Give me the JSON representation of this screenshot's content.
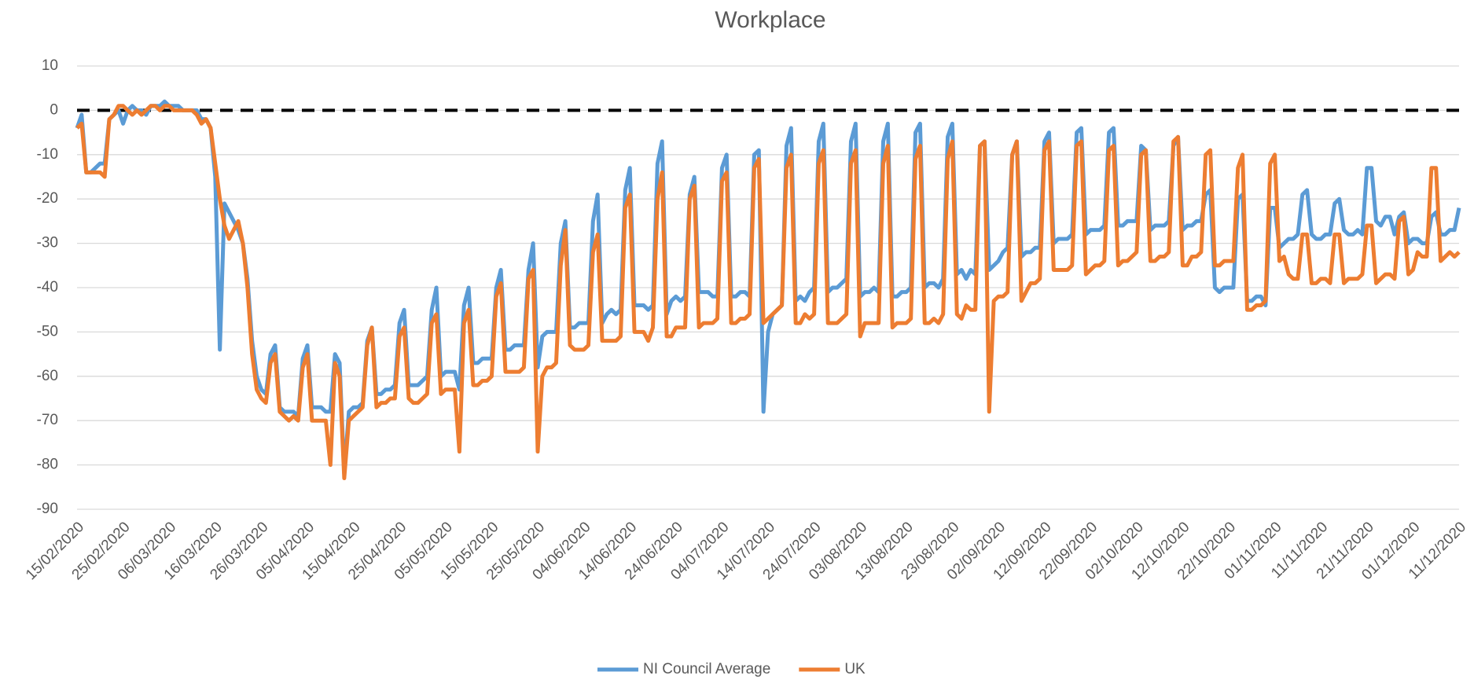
{
  "chart_data": {
    "type": "line",
    "title": "Workplace",
    "categories": [
      "15/02/2020",
      null,
      null,
      null,
      null,
      null,
      null,
      null,
      null,
      null,
      "25/02/2020",
      null,
      null,
      null,
      null,
      null,
      null,
      null,
      null,
      null,
      "06/03/2020",
      null,
      null,
      null,
      null,
      null,
      null,
      null,
      null,
      null,
      "16/03/2020",
      null,
      null,
      null,
      null,
      null,
      null,
      null,
      null,
      null,
      "26/03/2020",
      null,
      null,
      null,
      null,
      null,
      null,
      null,
      null,
      null,
      "05/04/2020",
      null,
      null,
      null,
      null,
      null,
      null,
      null,
      null,
      null,
      "15/04/2020",
      null,
      null,
      null,
      null,
      null,
      null,
      null,
      null,
      null,
      "25/04/2020",
      null,
      null,
      null,
      null,
      null,
      null,
      null,
      null,
      null,
      "05/05/2020",
      null,
      null,
      null,
      null,
      null,
      null,
      null,
      null,
      null,
      "15/05/2020",
      null,
      null,
      null,
      null,
      null,
      null,
      null,
      null,
      null,
      "25/05/2020",
      null,
      null,
      null,
      null,
      null,
      null,
      null,
      null,
      null,
      "04/06/2020",
      null,
      null,
      null,
      null,
      null,
      null,
      null,
      null,
      null,
      "14/06/2020",
      null,
      null,
      null,
      null,
      null,
      null,
      null,
      null,
      null,
      "24/06/2020",
      null,
      null,
      null,
      null,
      null,
      null,
      null,
      null,
      null,
      "04/07/2020",
      null,
      null,
      null,
      null,
      null,
      null,
      null,
      null,
      null,
      "14/07/2020",
      null,
      null,
      null,
      null,
      null,
      null,
      null,
      null,
      null,
      "24/07/2020",
      null,
      null,
      null,
      null,
      null,
      null,
      null,
      null,
      null,
      "03/08/2020",
      null,
      null,
      null,
      null,
      null,
      null,
      null,
      null,
      null,
      "13/08/2020",
      null,
      null,
      null,
      null,
      null,
      null,
      null,
      null,
      null,
      "23/08/2020",
      null,
      null,
      null,
      null,
      null,
      null,
      null,
      null,
      null,
      "02/09/2020",
      null,
      null,
      null,
      null,
      null,
      null,
      null,
      null,
      null,
      "12/09/2020",
      null,
      null,
      null,
      null,
      null,
      null,
      null,
      null,
      null,
      "22/09/2020",
      null,
      null,
      null,
      null,
      null,
      null,
      null,
      null,
      null,
      "02/10/2020",
      null,
      null,
      null,
      null,
      null,
      null,
      null,
      null,
      null,
      "12/10/2020",
      null,
      null,
      null,
      null,
      null,
      null,
      null,
      null,
      null,
      "22/10/2020",
      null,
      null,
      null,
      null,
      null,
      null,
      null,
      null,
      null,
      "01/11/2020",
      null,
      null,
      null,
      null,
      null,
      null,
      null,
      null,
      null,
      "11/11/2020",
      null,
      null,
      null,
      null,
      null,
      null,
      null,
      null,
      null,
      "21/11/2020",
      null,
      null,
      null,
      null,
      null,
      null,
      null,
      null,
      null,
      "01/12/2020",
      null,
      null,
      null,
      null,
      null,
      null,
      null,
      null,
      null,
      "11/12/2020"
    ],
    "series": [
      {
        "name": "NI Council Average",
        "color": "#5b9bd5",
        "values": [
          -4,
          -1,
          -14,
          -14,
          -13,
          -12,
          -12,
          -2,
          -1,
          0,
          -3,
          0,
          1,
          0,
          0,
          -1,
          1,
          1,
          1,
          2,
          1,
          1,
          1,
          0,
          0,
          0,
          0,
          -2,
          -2,
          -4,
          -15,
          -54,
          -21,
          -23,
          -25,
          -27,
          -30,
          -38,
          -52,
          -60,
          -63,
          -64,
          -55,
          -53,
          -67,
          -68,
          -68,
          -68,
          -69,
          -56,
          -53,
          -67,
          -67,
          -67,
          -68,
          -68,
          -55,
          -57,
          -82,
          -68,
          -67,
          -67,
          -66,
          -52,
          -49,
          -64,
          -64,
          -63,
          -63,
          -62,
          -48,
          -45,
          -62,
          -62,
          -62,
          -61,
          -60,
          -45,
          -40,
          -60,
          -59,
          -59,
          -59,
          -63,
          -44,
          -40,
          -57,
          -57,
          -56,
          -56,
          -56,
          -40,
          -36,
          -54,
          -54,
          -53,
          -53,
          -53,
          -36,
          -30,
          -58,
          -51,
          -50,
          -50,
          -50,
          -30,
          -25,
          -49,
          -49,
          -48,
          -48,
          -48,
          -25,
          -19,
          -48,
          -46,
          -45,
          -46,
          -45,
          -18,
          -13,
          -44,
          -44,
          -44,
          -45,
          -44,
          -12,
          -7,
          -46,
          -43,
          -42,
          -43,
          -42,
          -19,
          -15,
          -41,
          -41,
          -41,
          -42,
          -42,
          -13,
          -10,
          -42,
          -42,
          -41,
          -41,
          -42,
          -10,
          -9,
          -68,
          -50,
          -46,
          -45,
          -44,
          -8,
          -4,
          -43,
          -42,
          -43,
          -41,
          -40,
          -7,
          -3,
          -41,
          -40,
          -40,
          -39,
          -38,
          -7,
          -3,
          -42,
          -41,
          -41,
          -40,
          -41,
          -7,
          -3,
          -42,
          -42,
          -41,
          -41,
          -40,
          -5,
          -3,
          -40,
          -39,
          -39,
          -40,
          -38,
          -6,
          -3,
          -37,
          -36,
          -38,
          -36,
          -37,
          -8,
          -7,
          -36,
          -35,
          -34,
          -32,
          -31,
          -10,
          -7,
          -33,
          -32,
          -32,
          -31,
          -31,
          -7,
          -5,
          -30,
          -29,
          -29,
          -29,
          -28,
          -5,
          -4,
          -28,
          -27,
          -27,
          -27,
          -26,
          -5,
          -4,
          -26,
          -26,
          -25,
          -25,
          -25,
          -8,
          -9,
          -27,
          -26,
          -26,
          -26,
          -25,
          -8,
          -6,
          -27,
          -26,
          -26,
          -25,
          -25,
          -19,
          -18,
          -40,
          -41,
          -40,
          -40,
          -40,
          -20,
          -19,
          -43,
          -43,
          -42,
          -42,
          -44,
          -22,
          -22,
          -31,
          -30,
          -29,
          -29,
          -28,
          -19,
          -18,
          -28,
          -29,
          -29,
          -28,
          -28,
          -21,
          -20,
          -27,
          -28,
          -28,
          -27,
          -28,
          -13,
          -13,
          -25,
          -26,
          -24,
          -24,
          -28,
          -24,
          -23,
          -30,
          -29,
          -29,
          -30,
          -30,
          -24,
          -23,
          -28,
          -28,
          -27,
          -27,
          -22
        ]
      },
      {
        "name": "UK",
        "color": "#ed7d31",
        "values": [
          -4,
          -3,
          -14,
          -14,
          -14,
          -14,
          -15,
          -2,
          -1,
          1,
          1,
          0,
          -1,
          0,
          -1,
          0,
          1,
          1,
          0,
          1,
          1,
          0,
          0,
          0,
          0,
          0,
          -1,
          -3,
          -2,
          -4,
          -12,
          -20,
          -26,
          -29,
          -27,
          -25,
          -30,
          -40,
          -55,
          -63,
          -65,
          -66,
          -57,
          -55,
          -68,
          -69,
          -70,
          -69,
          -70,
          -58,
          -55,
          -70,
          -70,
          -70,
          -70,
          -80,
          -57,
          -60,
          -83,
          -70,
          -69,
          -68,
          -67,
          -53,
          -49,
          -67,
          -66,
          -66,
          -65,
          -65,
          -51,
          -49,
          -65,
          -66,
          -66,
          -65,
          -64,
          -48,
          -46,
          -64,
          -63,
          -63,
          -63,
          -77,
          -48,
          -45,
          -62,
          -62,
          -61,
          -61,
          -60,
          -42,
          -39,
          -59,
          -59,
          -59,
          -59,
          -58,
          -38,
          -36,
          -77,
          -60,
          -58,
          -58,
          -57,
          -35,
          -27,
          -53,
          -54,
          -54,
          -54,
          -53,
          -32,
          -28,
          -52,
          -52,
          -52,
          -52,
          -51,
          -22,
          -19,
          -50,
          -50,
          -50,
          -52,
          -49,
          -20,
          -14,
          -51,
          -51,
          -49,
          -49,
          -49,
          -20,
          -17,
          -49,
          -48,
          -48,
          -48,
          -47,
          -16,
          -14,
          -48,
          -48,
          -47,
          -47,
          -46,
          -13,
          -11,
          -48,
          -47,
          -46,
          -45,
          -44,
          -13,
          -10,
          -48,
          -48,
          -46,
          -47,
          -46,
          -12,
          -9,
          -48,
          -48,
          -48,
          -47,
          -46,
          -12,
          -9,
          -51,
          -48,
          -48,
          -48,
          -48,
          -12,
          -8,
          -49,
          -48,
          -48,
          -48,
          -47,
          -11,
          -8,
          -48,
          -48,
          -47,
          -48,
          -46,
          -11,
          -7,
          -46,
          -47,
          -44,
          -45,
          -45,
          -8,
          -7,
          -68,
          -43,
          -42,
          -42,
          -41,
          -10,
          -7,
          -43,
          -41,
          -39,
          -39,
          -38,
          -9,
          -7,
          -36,
          -36,
          -36,
          -36,
          -35,
          -8,
          -7,
          -37,
          -36,
          -35,
          -35,
          -34,
          -9,
          -8,
          -35,
          -34,
          -34,
          -33,
          -32,
          -10,
          -9,
          -34,
          -34,
          -33,
          -33,
          -32,
          -7,
          -6,
          -35,
          -35,
          -33,
          -33,
          -32,
          -10,
          -9,
          -35,
          -35,
          -34,
          -34,
          -34,
          -13,
          -10,
          -45,
          -45,
          -44,
          -44,
          -43,
          -12,
          -10,
          -34,
          -33,
          -37,
          -38,
          -38,
          -28,
          -28,
          -39,
          -39,
          -38,
          -38,
          -39,
          -28,
          -28,
          -39,
          -38,
          -38,
          -38,
          -37,
          -26,
          -26,
          -39,
          -38,
          -37,
          -37,
          -38,
          -25,
          -24,
          -37,
          -36,
          -32,
          -33,
          -33,
          -13,
          -13,
          -34,
          -33,
          -32,
          -33,
          -32
        ]
      }
    ],
    "ylim": [
      -90,
      10
    ],
    "yticks": [
      10,
      0,
      -10,
      -20,
      -30,
      -40,
      -50,
      -60,
      -70,
      -80,
      -90
    ],
    "grid": true,
    "reference_line": {
      "value": 0,
      "color": "#000000",
      "dashed": true
    },
    "legend": "bottom"
  }
}
